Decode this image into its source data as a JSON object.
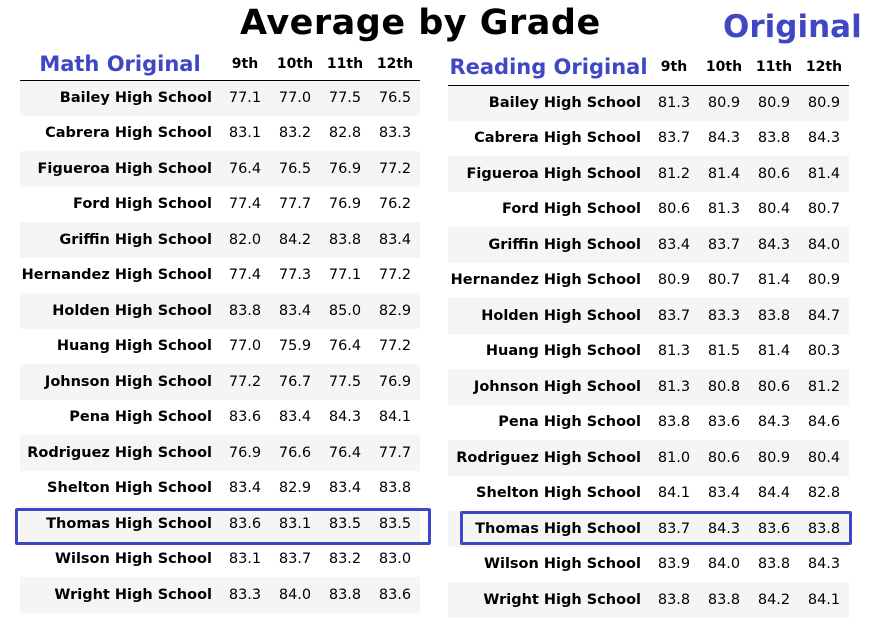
{
  "title": "Average by Grade",
  "corner_label": "Original",
  "math": {
    "heading": "Math Original",
    "columns": [
      "9th",
      "10th",
      "11th",
      "12th"
    ],
    "rows": [
      {
        "school": "Bailey High School",
        "values": [
          "77.1",
          "77.0",
          "77.5",
          "76.5"
        ]
      },
      {
        "school": "Cabrera High School",
        "values": [
          "83.1",
          "83.2",
          "82.8",
          "83.3"
        ]
      },
      {
        "school": "Figueroa High School",
        "values": [
          "76.4",
          "76.5",
          "76.9",
          "77.2"
        ]
      },
      {
        "school": "Ford High School",
        "values": [
          "77.4",
          "77.7",
          "76.9",
          "76.2"
        ]
      },
      {
        "school": "Griffin High School",
        "values": [
          "82.0",
          "84.2",
          "83.8",
          "83.4"
        ]
      },
      {
        "school": "Hernandez High School",
        "values": [
          "77.4",
          "77.3",
          "77.1",
          "77.2"
        ]
      },
      {
        "school": "Holden High School",
        "values": [
          "83.8",
          "83.4",
          "85.0",
          "82.9"
        ]
      },
      {
        "school": "Huang High School",
        "values": [
          "77.0",
          "75.9",
          "76.4",
          "77.2"
        ]
      },
      {
        "school": "Johnson High School",
        "values": [
          "77.2",
          "76.7",
          "77.5",
          "76.9"
        ]
      },
      {
        "school": "Pena High School",
        "values": [
          "83.6",
          "83.4",
          "84.3",
          "84.1"
        ]
      },
      {
        "school": "Rodriguez High School",
        "values": [
          "76.9",
          "76.6",
          "76.4",
          "77.7"
        ]
      },
      {
        "school": "Shelton High School",
        "values": [
          "83.4",
          "82.9",
          "83.4",
          "83.8"
        ]
      },
      {
        "school": "Thomas High School",
        "values": [
          "83.6",
          "83.1",
          "83.5",
          "83.5"
        ]
      },
      {
        "school": "Wilson High School",
        "values": [
          "83.1",
          "83.7",
          "83.2",
          "83.0"
        ]
      },
      {
        "school": "Wright High School",
        "values": [
          "83.3",
          "84.0",
          "83.8",
          "83.6"
        ]
      }
    ]
  },
  "reading": {
    "heading": "Reading Original",
    "columns": [
      "9th",
      "10th",
      "11th",
      "12th"
    ],
    "rows": [
      {
        "school": "Bailey High School",
        "values": [
          "81.3",
          "80.9",
          "80.9",
          "80.9"
        ]
      },
      {
        "school": "Cabrera High School",
        "values": [
          "83.7",
          "84.3",
          "83.8",
          "84.3"
        ]
      },
      {
        "school": "Figueroa High School",
        "values": [
          "81.2",
          "81.4",
          "80.6",
          "81.4"
        ]
      },
      {
        "school": "Ford High School",
        "values": [
          "80.6",
          "81.3",
          "80.4",
          "80.7"
        ]
      },
      {
        "school": "Griffin High School",
        "values": [
          "83.4",
          "83.7",
          "84.3",
          "84.0"
        ]
      },
      {
        "school": "Hernandez High School",
        "values": [
          "80.9",
          "80.7",
          "81.4",
          "80.9"
        ]
      },
      {
        "school": "Holden High School",
        "values": [
          "83.7",
          "83.3",
          "83.8",
          "84.7"
        ]
      },
      {
        "school": "Huang High School",
        "values": [
          "81.3",
          "81.5",
          "81.4",
          "80.3"
        ]
      },
      {
        "school": "Johnson High School",
        "values": [
          "81.3",
          "80.8",
          "80.6",
          "81.2"
        ]
      },
      {
        "school": "Pena High School",
        "values": [
          "83.8",
          "83.6",
          "84.3",
          "84.6"
        ]
      },
      {
        "school": "Rodriguez High School",
        "values": [
          "81.0",
          "80.6",
          "80.9",
          "80.4"
        ]
      },
      {
        "school": "Shelton High School",
        "values": [
          "84.1",
          "83.4",
          "84.4",
          "82.8"
        ]
      },
      {
        "school": "Thomas High School",
        "values": [
          "83.7",
          "84.3",
          "83.6",
          "83.8"
        ]
      },
      {
        "school": "Wilson High School",
        "values": [
          "83.9",
          "84.0",
          "83.8",
          "84.3"
        ]
      },
      {
        "school": "Wright High School",
        "values": [
          "83.8",
          "83.8",
          "84.2",
          "84.1"
        ]
      }
    ]
  },
  "highlighted_school": "Thomas High School",
  "colors": {
    "accent": "#3f48c4",
    "row_stripe": "#f5f5f5",
    "text": "#000000"
  }
}
